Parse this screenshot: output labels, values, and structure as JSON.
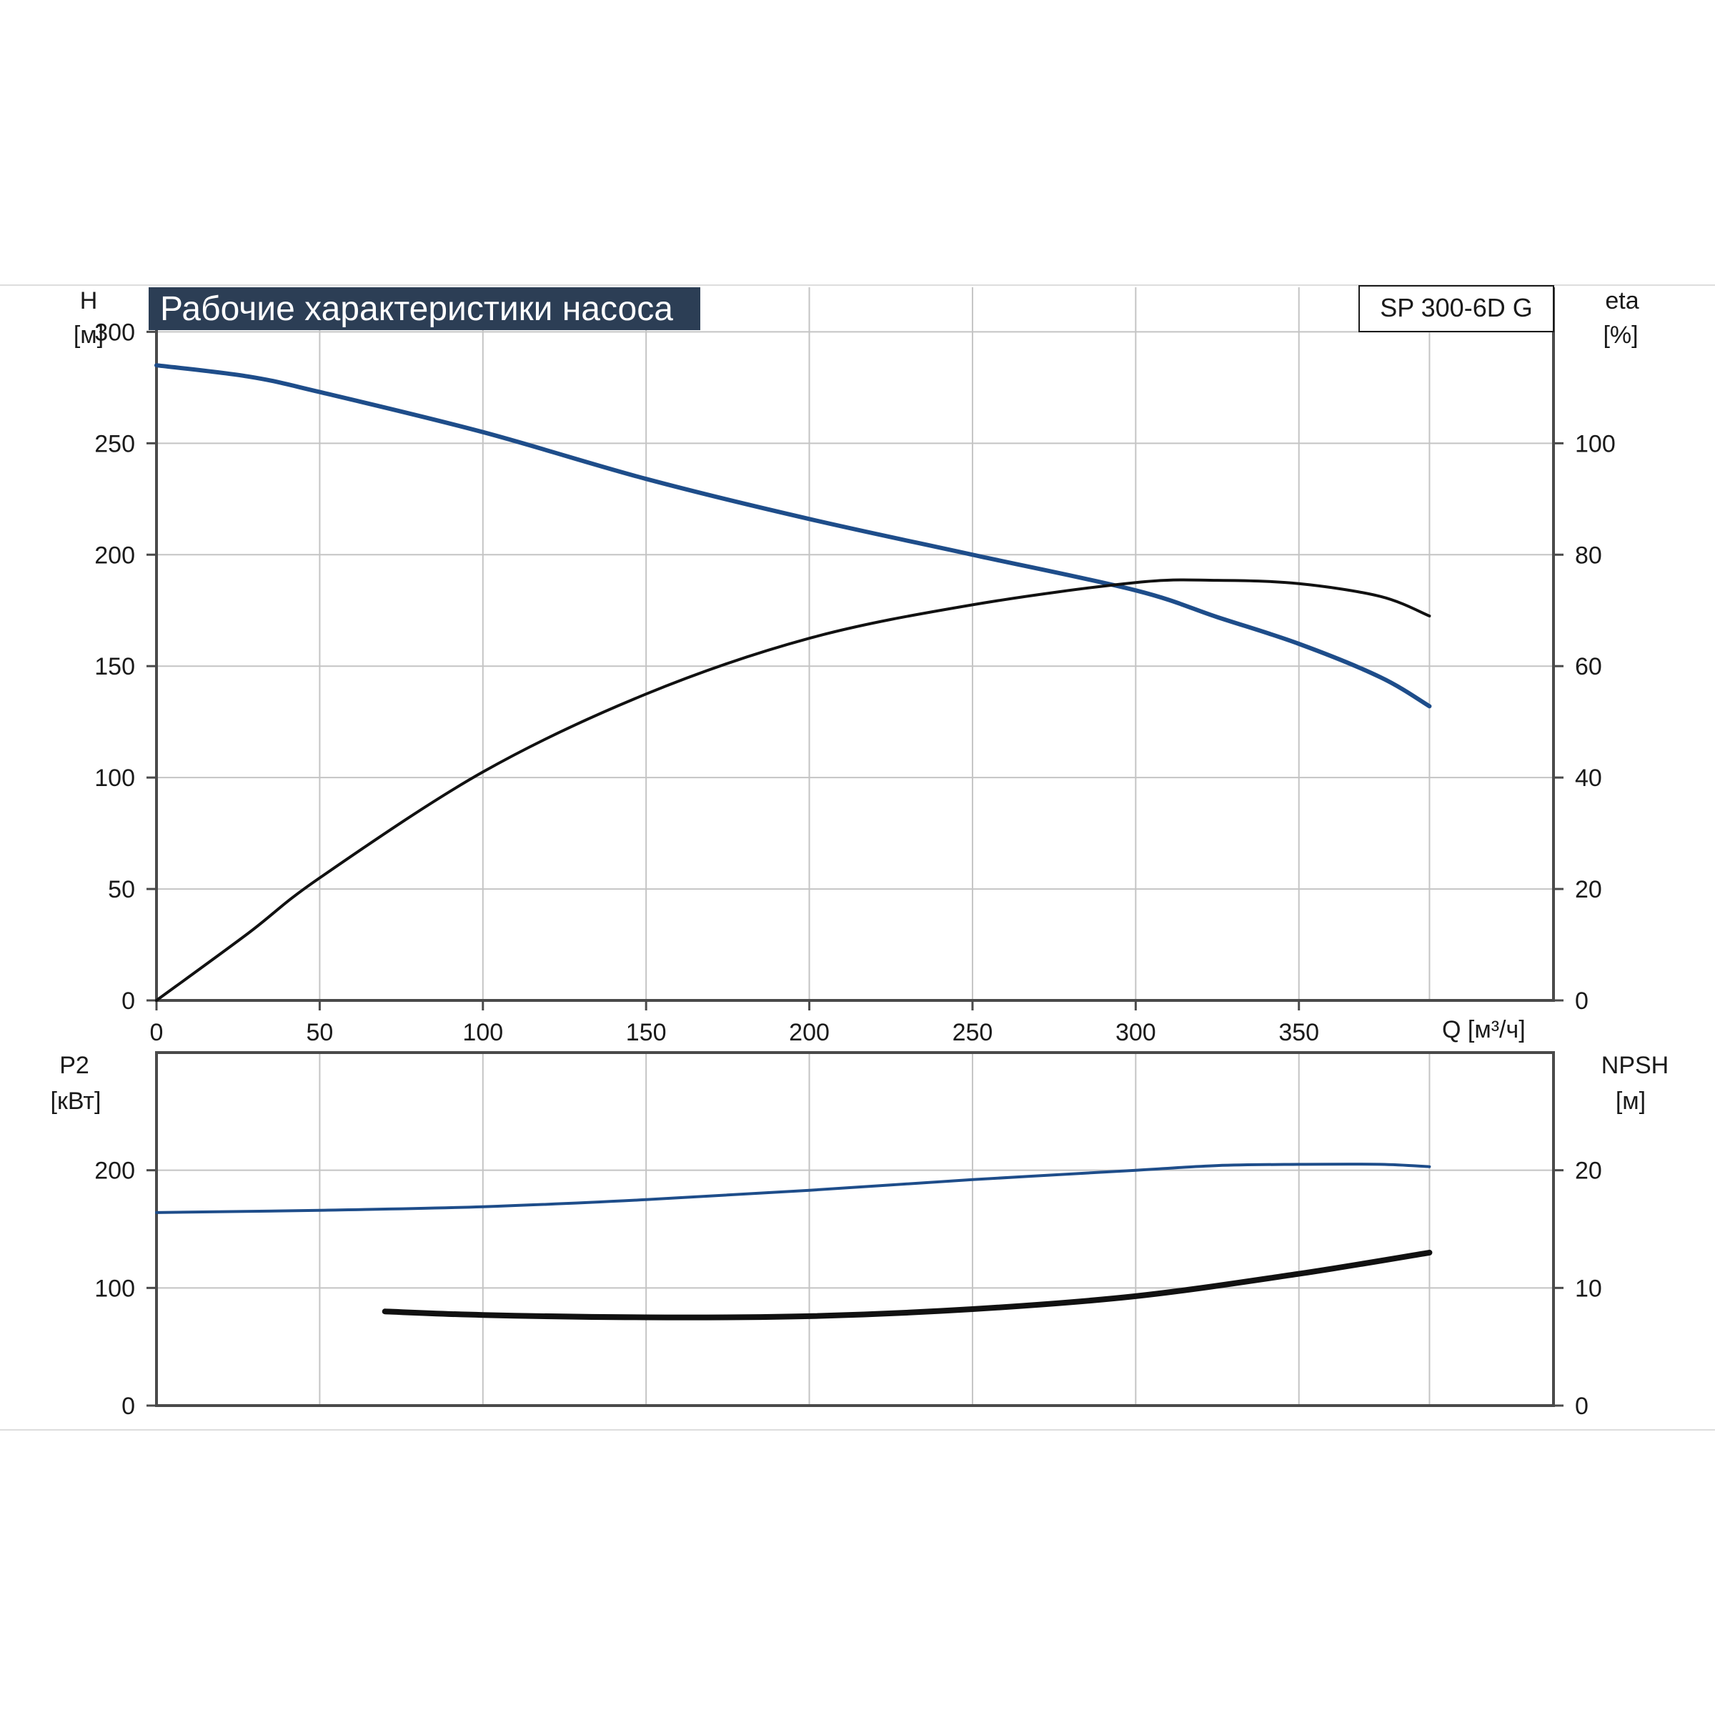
{
  "title": "Рабочие характеристики насоса",
  "model": "SP 300-6D G",
  "colors": {
    "blue": "#1e4d8a",
    "black": "#111111",
    "title_bg": "#2c3e55"
  },
  "chart_data": [
    {
      "type": "line",
      "xlabel": "Q [м³/ч]",
      "ylabel": [
        "H",
        "[м]"
      ],
      "y2label": [
        "eta",
        "[%]"
      ],
      "xlim": [
        0,
        428
      ],
      "ylim": [
        0,
        320
      ],
      "y2lim": [
        0,
        128
      ],
      "xticks": [
        0,
        50,
        100,
        150,
        200,
        250,
        300,
        350
      ],
      "yticks": [
        0,
        50,
        100,
        150,
        200,
        250,
        300
      ],
      "y2ticks": [
        0,
        20,
        40,
        60,
        80,
        100
      ],
      "grid": true,
      "series": [
        {
          "axis": "left",
          "color": "blue",
          "x": [
            0,
            28,
            50,
            100,
            150,
            200,
            250,
            300,
            325,
            350,
            375,
            390
          ],
          "y": [
            285,
            280,
            273,
            255,
            234,
            216,
            200,
            184,
            172,
            160,
            145,
            132
          ]
        },
        {
          "axis": "right",
          "color": "black",
          "x": [
            0,
            28,
            50,
            100,
            150,
            200,
            250,
            300,
            325,
            350,
            375,
            390
          ],
          "y": [
            0,
            12,
            22,
            41,
            55,
            65,
            71,
            75,
            75.4,
            74.8,
            72.5,
            69
          ]
        }
      ]
    },
    {
      "type": "line",
      "ylabel": [
        "P2",
        "[кВт]"
      ],
      "y2label": [
        "NPSH",
        "[м]"
      ],
      "xlim": [
        0,
        428
      ],
      "ylim": [
        0,
        300
      ],
      "y2lim": [
        0,
        30
      ],
      "xticks": [
        0,
        50,
        100,
        150,
        200,
        250,
        300,
        350
      ],
      "yticks": [
        0,
        100,
        200
      ],
      "y2ticks": [
        0,
        10,
        20
      ],
      "grid": true,
      "series": [
        {
          "axis": "left",
          "color": "blue",
          "x": [
            0,
            50,
            100,
            150,
            200,
            250,
            300,
            325,
            350,
            375,
            390
          ],
          "y": [
            164,
            166,
            169,
            175,
            183,
            192,
            200,
            204,
            205,
            205,
            203
          ]
        },
        {
          "axis": "right",
          "color": "black",
          "x": [
            70,
            100,
            150,
            200,
            250,
            300,
            350,
            390
          ],
          "y": [
            8.0,
            7.7,
            7.5,
            7.6,
            8.2,
            9.3,
            11.2,
            13.0
          ]
        }
      ]
    }
  ]
}
